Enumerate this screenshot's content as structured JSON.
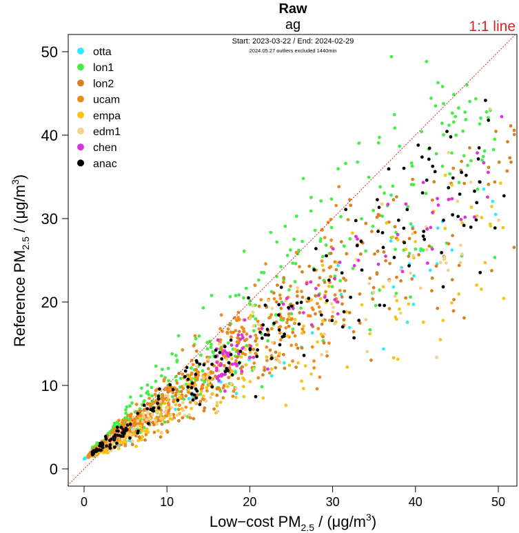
{
  "chart_data": {
    "type": "scatter",
    "title": "Raw",
    "subtitle": "ag",
    "date_range": "Start: 2023-03-22 / End: 2024-02-29",
    "note": "2024.05.27 outliers excluded 1440min",
    "reference_line_label": "1:1 line",
    "xlabel": {
      "pre": "Low−cost PM",
      "sub": "2.5",
      "mid": " / (μg/m",
      "sup": "3",
      "post": ")"
    },
    "ylabel": {
      "pre": "Reference PM",
      "sub": "2.5",
      "mid": " / (μg/m",
      "sup": "3",
      "post": ")"
    },
    "xlim": [
      -2,
      52
    ],
    "ylim": [
      -2,
      52
    ],
    "x_ticks": [
      0,
      10,
      20,
      30,
      40,
      50
    ],
    "y_ticks": [
      0,
      10,
      20,
      30,
      40,
      50
    ],
    "legend_position": "top-left",
    "series": [
      {
        "name": "otta",
        "color": "#33e8ff",
        "n": 60,
        "xr": [
          0,
          50
        ],
        "slope": 0.58,
        "spread": 0.18
      },
      {
        "name": "lon1",
        "color": "#44ee44",
        "n": 420,
        "xr": [
          1,
          51
        ],
        "slope": 0.85,
        "spread": 0.22
      },
      {
        "name": "lon2",
        "color": "#d98020",
        "n": 380,
        "xr": [
          1,
          52
        ],
        "slope": 0.63,
        "spread": 0.22
      },
      {
        "name": "ucam",
        "color": "#f28a1e",
        "n": 480,
        "xr": [
          0.5,
          32
        ],
        "slope": 0.7,
        "spread": 0.22
      },
      {
        "name": "empa",
        "color": "#f5c518",
        "n": 200,
        "xr": [
          1,
          51
        ],
        "slope": 0.55,
        "spread": 0.22
      },
      {
        "name": "edm1",
        "color": "#f5cf8c",
        "n": 150,
        "xr": [
          3,
          51
        ],
        "slope": 0.62,
        "spread": 0.22
      },
      {
        "name": "chen",
        "color": "#dd33dd",
        "n": 90,
        "xr": [
          16,
          52
        ],
        "slope": 0.7,
        "spread": 0.12
      },
      {
        "name": "anac",
        "color": "#000000",
        "n": 220,
        "xr": [
          1,
          51
        ],
        "slope": 0.7,
        "spread": 0.18
      }
    ],
    "colors": {
      "reference_line": "#dd2222",
      "axis": "#000000"
    }
  }
}
